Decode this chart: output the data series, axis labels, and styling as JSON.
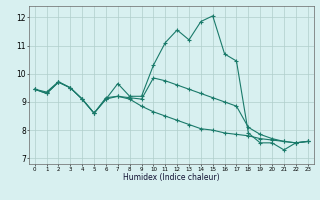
{
  "xlabel": "Humidex (Indice chaleur)",
  "bg_color": "#d8f0f0",
  "grid_color": "#b0cecb",
  "line_color": "#1a7a6a",
  "xlim": [
    -0.5,
    23.5
  ],
  "ylim": [
    6.8,
    12.4
  ],
  "xticks": [
    0,
    1,
    2,
    3,
    4,
    5,
    6,
    7,
    8,
    9,
    10,
    11,
    12,
    13,
    14,
    15,
    16,
    17,
    18,
    19,
    20,
    21,
    22,
    23
  ],
  "yticks": [
    7,
    8,
    9,
    10,
    11,
    12
  ],
  "line1_x": [
    0,
    1,
    2,
    3,
    4,
    5,
    6,
    7,
    8,
    9,
    10,
    11,
    12,
    13,
    14,
    15,
    16,
    17,
    18,
    19,
    20,
    21,
    22,
    23
  ],
  "line1_y": [
    9.45,
    9.35,
    9.72,
    9.5,
    9.1,
    8.6,
    9.1,
    9.65,
    9.2,
    9.2,
    10.3,
    11.1,
    11.55,
    11.2,
    11.85,
    12.05,
    10.7,
    10.45,
    7.9,
    7.55,
    7.55,
    7.3,
    7.55,
    7.6
  ],
  "line2_x": [
    0,
    1,
    2,
    3,
    4,
    5,
    6,
    7,
    8,
    9,
    10,
    11,
    12,
    13,
    14,
    15,
    16,
    17,
    18,
    19,
    20,
    21,
    22,
    23
  ],
  "line2_y": [
    9.45,
    9.3,
    9.7,
    9.5,
    9.1,
    8.6,
    9.1,
    9.2,
    9.1,
    8.85,
    8.65,
    8.5,
    8.35,
    8.2,
    8.05,
    8.0,
    7.9,
    7.85,
    7.8,
    7.7,
    7.65,
    7.6,
    7.55,
    7.6
  ],
  "line3_x": [
    0,
    1,
    2,
    3,
    4,
    5,
    6,
    7,
    8,
    9,
    10,
    11,
    12,
    13,
    14,
    15,
    16,
    17,
    18,
    19,
    20,
    21,
    22,
    23
  ],
  "line3_y": [
    9.45,
    9.3,
    9.7,
    9.5,
    9.1,
    8.6,
    9.15,
    9.2,
    9.15,
    9.1,
    9.85,
    9.75,
    9.6,
    9.45,
    9.3,
    9.15,
    9.0,
    8.85,
    8.1,
    7.85,
    7.7,
    7.6,
    7.55,
    7.6
  ]
}
